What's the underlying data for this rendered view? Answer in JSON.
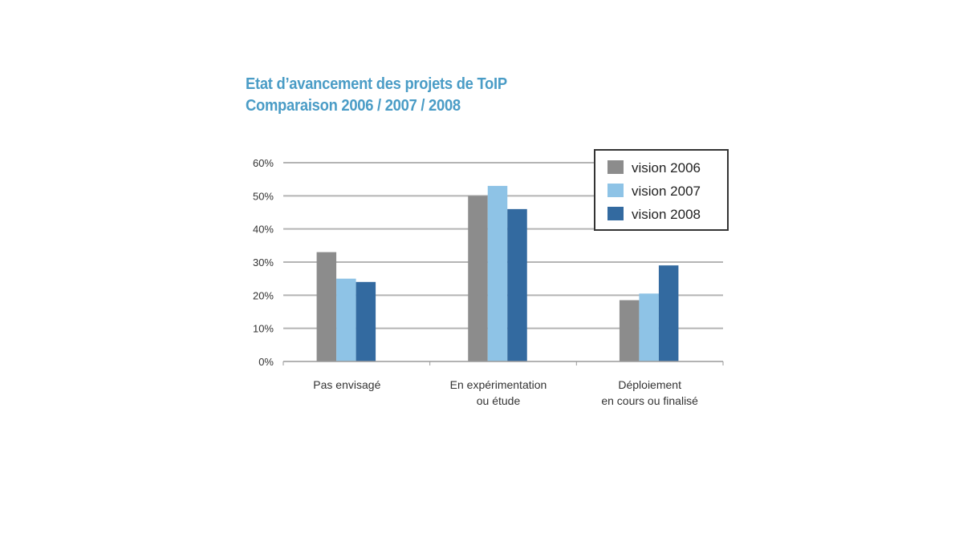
{
  "chart_data": {
    "type": "bar",
    "title": "Etat d’avancement des projets de ToIP",
    "subtitle": "Comparaison 2006 / 2007 / 2008",
    "categories": [
      [
        "Pas envisagé"
      ],
      [
        "En expérimentation",
        "ou étude"
      ],
      [
        "Déploiement",
        "en cours ou finalisé"
      ]
    ],
    "series": [
      {
        "name": "vision 2006",
        "color": "#8c8c8c",
        "values": [
          33,
          50,
          18.5
        ]
      },
      {
        "name": "vision 2007",
        "color": "#8ec3e6",
        "values": [
          25,
          53,
          20.5
        ]
      },
      {
        "name": "vision 2008",
        "color": "#336aa0",
        "values": [
          24,
          46,
          29
        ]
      }
    ],
    "yticks": [
      "0%",
      "10%",
      "20%",
      "30%",
      "40%",
      "50%",
      "60%"
    ],
    "ylim": [
      0,
      60
    ],
    "grid": true,
    "legend_position": "top-right"
  }
}
